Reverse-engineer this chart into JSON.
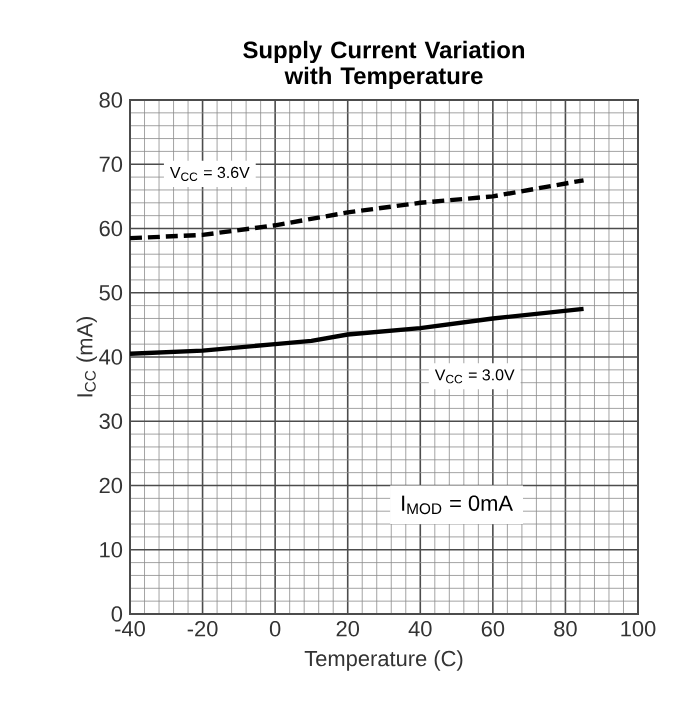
{
  "chart_data": {
    "type": "line",
    "title": "Supply Current Variation with Temperature",
    "xlabel": "Temperature (C)",
    "ylabel": "I$_{CC}$ (mA)",
    "xlim": [
      -40,
      100
    ],
    "ylim": [
      0,
      80
    ],
    "xticks": [
      -40,
      -20,
      0,
      20,
      40,
      60,
      80,
      100
    ],
    "yticks": [
      0,
      10,
      20,
      30,
      40,
      50,
      60,
      70,
      80
    ],
    "grid": true,
    "series": [
      {
        "name": "V$_{CC}$ = 3.6V",
        "color": "#000000",
        "line_style": "dashed",
        "x": [
          -40,
          -20,
          0,
          20,
          40,
          60,
          85
        ],
        "values": [
          58.5,
          59,
          60.5,
          62.5,
          64,
          65,
          67.5
        ]
      },
      {
        "name": "V$_{CC}$ = 3.0V",
        "color": "#000000",
        "line_style": "solid",
        "x": [
          -40,
          -20,
          0,
          10,
          20,
          40,
          60,
          85
        ],
        "values": [
          40.5,
          41,
          42,
          42.5,
          43.5,
          44.5,
          46,
          47.5
        ]
      }
    ],
    "annotations": [
      "I$_{MOD}$ = 0mA"
    ]
  }
}
